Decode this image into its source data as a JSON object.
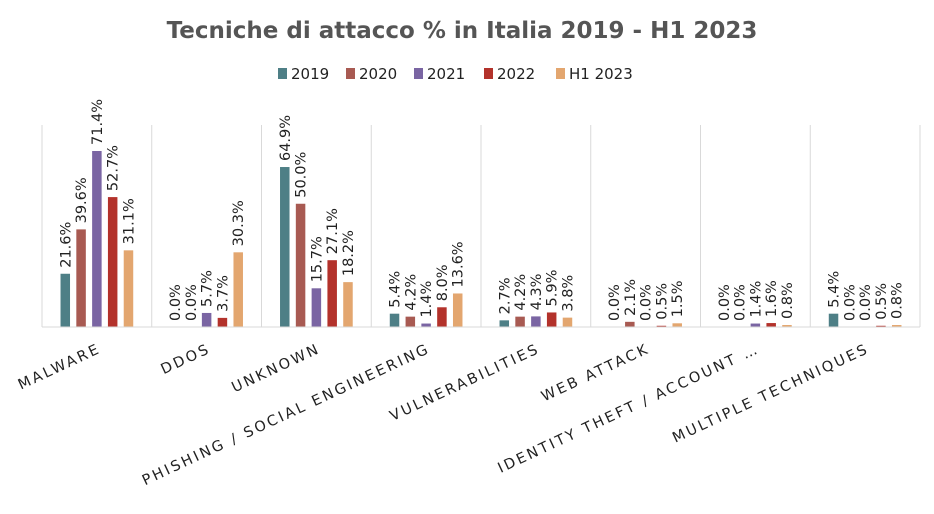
{
  "chart_data": {
    "type": "bar",
    "title": "Tecniche di attacco % in Italia 2019 - H1 2023",
    "categories": [
      "MALWARE",
      "DDOS",
      "UNKNOWN",
      "PHISHING / SOCIAL ENGINEERING",
      "VULNERABILITIES",
      "WEB ATTACK",
      "IDENTITY THEFT / ACCOUNT …",
      "MULTIPLE TECHNIQUES"
    ],
    "series": [
      {
        "name": "2019",
        "color": "#4e7f86",
        "values": [
          21.6,
          0.0,
          64.9,
          5.4,
          2.7,
          0.0,
          0.0,
          5.4
        ],
        "labels": [
          "21.6%",
          "0.0%",
          "64.9%",
          "5.4%",
          "2.7%",
          "0.0%",
          "0.0%",
          "5.4%"
        ]
      },
      {
        "name": "2020",
        "color": "#a85a52",
        "values": [
          39.6,
          0.0,
          50.0,
          4.2,
          4.2,
          2.1,
          0.0,
          0.0
        ],
        "labels": [
          "39.6%",
          "0.0%",
          "50.0%",
          "4.2%",
          "4.2%",
          "2.1%",
          "0.0%",
          "0.0%"
        ]
      },
      {
        "name": "2021",
        "color": "#7a65a3",
        "values": [
          71.4,
          5.7,
          15.7,
          1.4,
          4.3,
          0.0,
          1.4,
          0.0
        ],
        "labels": [
          "71.4%",
          "5.7%",
          "15.7%",
          "1.4%",
          "4.3%",
          "0.0%",
          "1.4%",
          "0.0%"
        ]
      },
      {
        "name": "2022",
        "color": "#b3322b",
        "values": [
          52.7,
          3.7,
          27.1,
          8.0,
          5.9,
          0.5,
          1.6,
          0.5
        ],
        "labels": [
          "52.7%",
          "3.7%",
          "27.1%",
          "8.0%",
          "5.9%",
          "0.5%",
          "1.6%",
          "0.5%"
        ]
      },
      {
        "name": "H1 2023",
        "color": "#e3a66f",
        "values": [
          31.1,
          30.3,
          18.2,
          13.6,
          3.8,
          1.5,
          0.8,
          0.8
        ],
        "labels": [
          "31.1%",
          "30.3%",
          "18.2%",
          "13.6%",
          "3.8%",
          "1.5%",
          "0.8%",
          "0.8%"
        ]
      }
    ],
    "ylim": [
      0,
      75
    ],
    "legend": "top-center",
    "grid": false,
    "category_separators": true,
    "xlabel": "",
    "ylabel": ""
  }
}
